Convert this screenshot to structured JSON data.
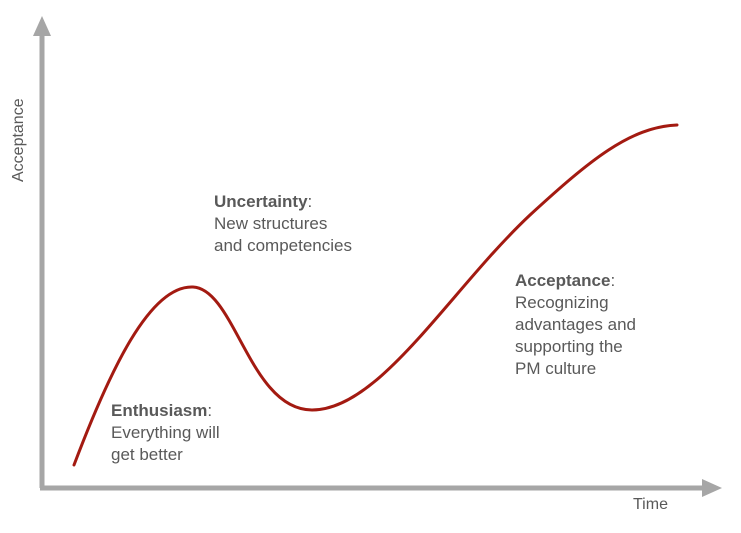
{
  "axes": {
    "y_label": "Acceptance",
    "x_label": "Time",
    "axis_color": "#a6a6a6",
    "curve_color": "#a31a11"
  },
  "annotations": {
    "enthusiasm": {
      "head": "Enthusiasm",
      "sep": ":",
      "line1": "Everything will",
      "line2": "get better"
    },
    "uncertainty": {
      "head": "Uncertainty",
      "sep": ":",
      "line1": "New structures",
      "line2": "and competencies"
    },
    "acceptance": {
      "head": "Acceptance",
      "sep": ":",
      "line1": "Recognizing",
      "line2": "advantages and",
      "line3": "supporting the",
      "line4": "PM culture"
    }
  }
}
